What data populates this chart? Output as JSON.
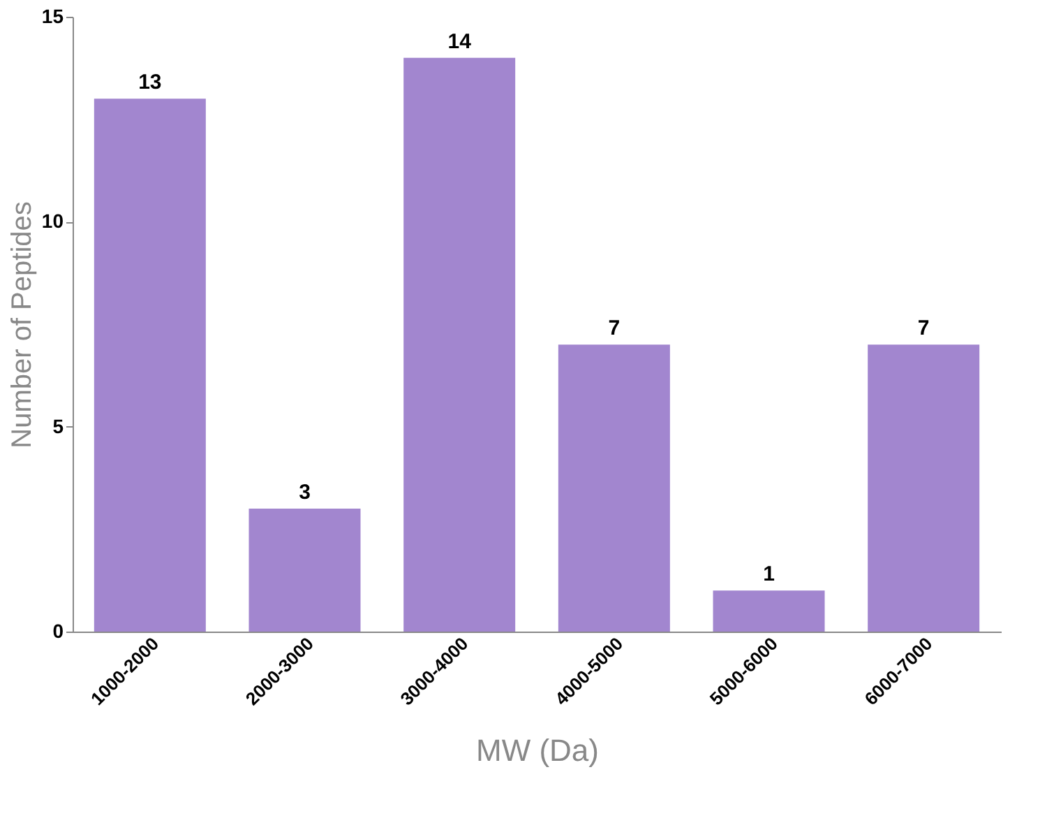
{
  "chart_data": {
    "type": "bar",
    "xlabel": "MW (Da)",
    "ylabel": "Number of Peptides",
    "categories": [
      "1000-2000",
      "2000-3000",
      "3000-4000",
      "4000-5000",
      "5000-6000",
      "6000-7000"
    ],
    "values": [
      13,
      3,
      14,
      7,
      1,
      7
    ],
    "color": "#a286cf",
    "ylim": [
      0,
      15
    ],
    "yticks": [
      0,
      5,
      10,
      15
    ],
    "grid": false,
    "data_labels": true
  }
}
